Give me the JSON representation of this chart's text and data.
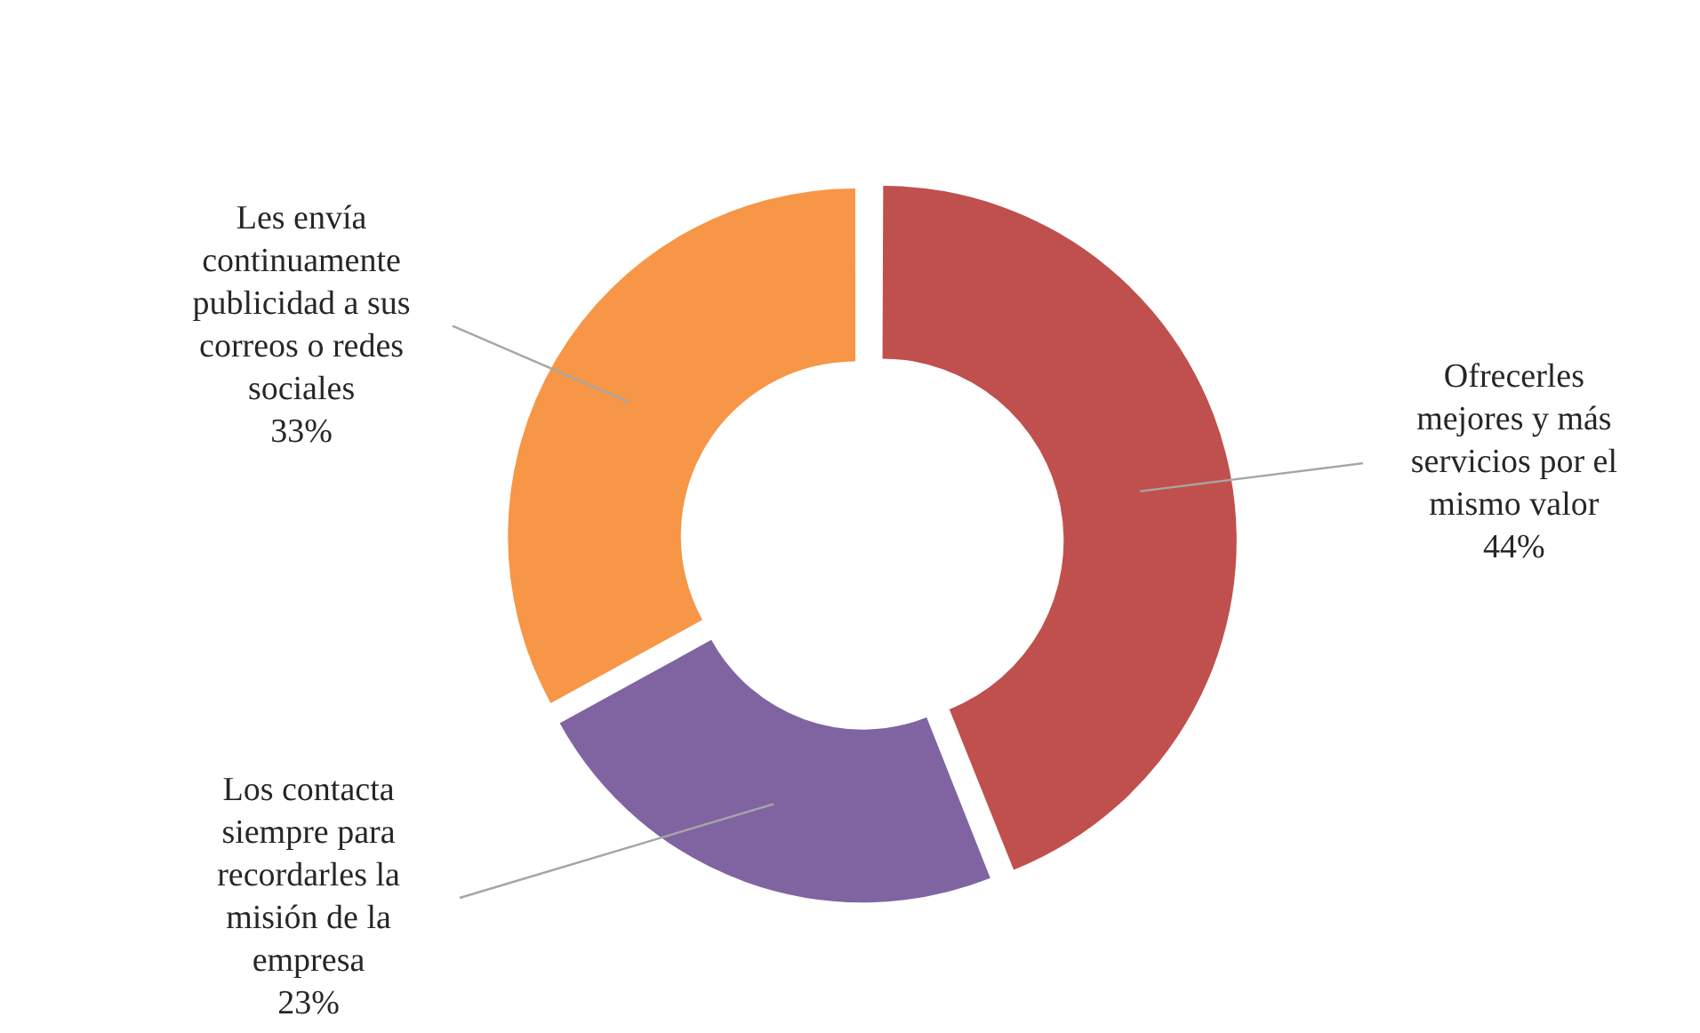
{
  "chart_data": {
    "type": "donut",
    "categories": [
      "Ofrecerles mejores y más servicios por el mismo valor",
      "Los contacta siempre para recordarles la misión de la empresa",
      "Les envía continuamente publicidad a sus correos o redes sociales"
    ],
    "values": [
      44,
      23,
      33
    ],
    "colors": [
      "#c0504d",
      "#8064a2",
      "#f79646"
    ],
    "value_labels": [
      "44%",
      "23%",
      "33%"
    ],
    "legend": false
  }
}
